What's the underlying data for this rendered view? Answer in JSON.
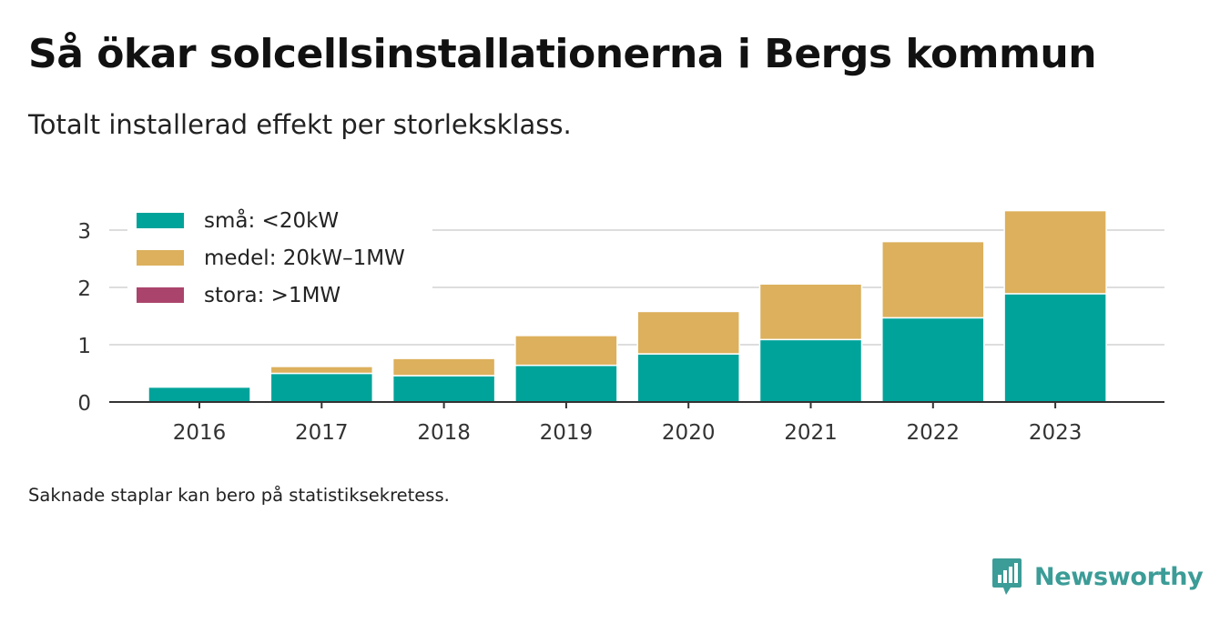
{
  "chart_data": {
    "type": "bar",
    "stacked": true,
    "title": "Så ökar solcellsinstallationerna i Bergs kommun",
    "subtitle": "Totalt installerad effekt per storleksklass.",
    "xlabel": "",
    "ylabel": "",
    "categories": [
      "2016",
      "2017",
      "2018",
      "2019",
      "2020",
      "2021",
      "2022",
      "2023"
    ],
    "series": [
      {
        "name": "små: <20kW",
        "color": "#00a39a",
        "values": [
          0.26,
          0.5,
          0.46,
          0.64,
          0.84,
          1.09,
          1.47,
          1.89
        ]
      },
      {
        "name": "medel: 20kW–1MW",
        "color": "#dcb05c",
        "values": [
          0,
          0.12,
          0.3,
          0.52,
          0.74,
          0.97,
          1.33,
          1.45
        ]
      },
      {
        "name": "stora: >1MW",
        "color": "#ab446c",
        "values": [
          0,
          0,
          0,
          0,
          0,
          0,
          0,
          0
        ]
      }
    ],
    "yticks": [
      "0",
      "1",
      "2",
      "3"
    ],
    "ylim": [
      0,
      3.3
    ],
    "grid": true,
    "legend": "top-left"
  },
  "note": "Saknade staplar kan bero på statistiksekretess.",
  "brand": {
    "name": "Newsworthy",
    "icon": "bar-chart-speech-bubble-icon",
    "color": "#3c9c97"
  }
}
